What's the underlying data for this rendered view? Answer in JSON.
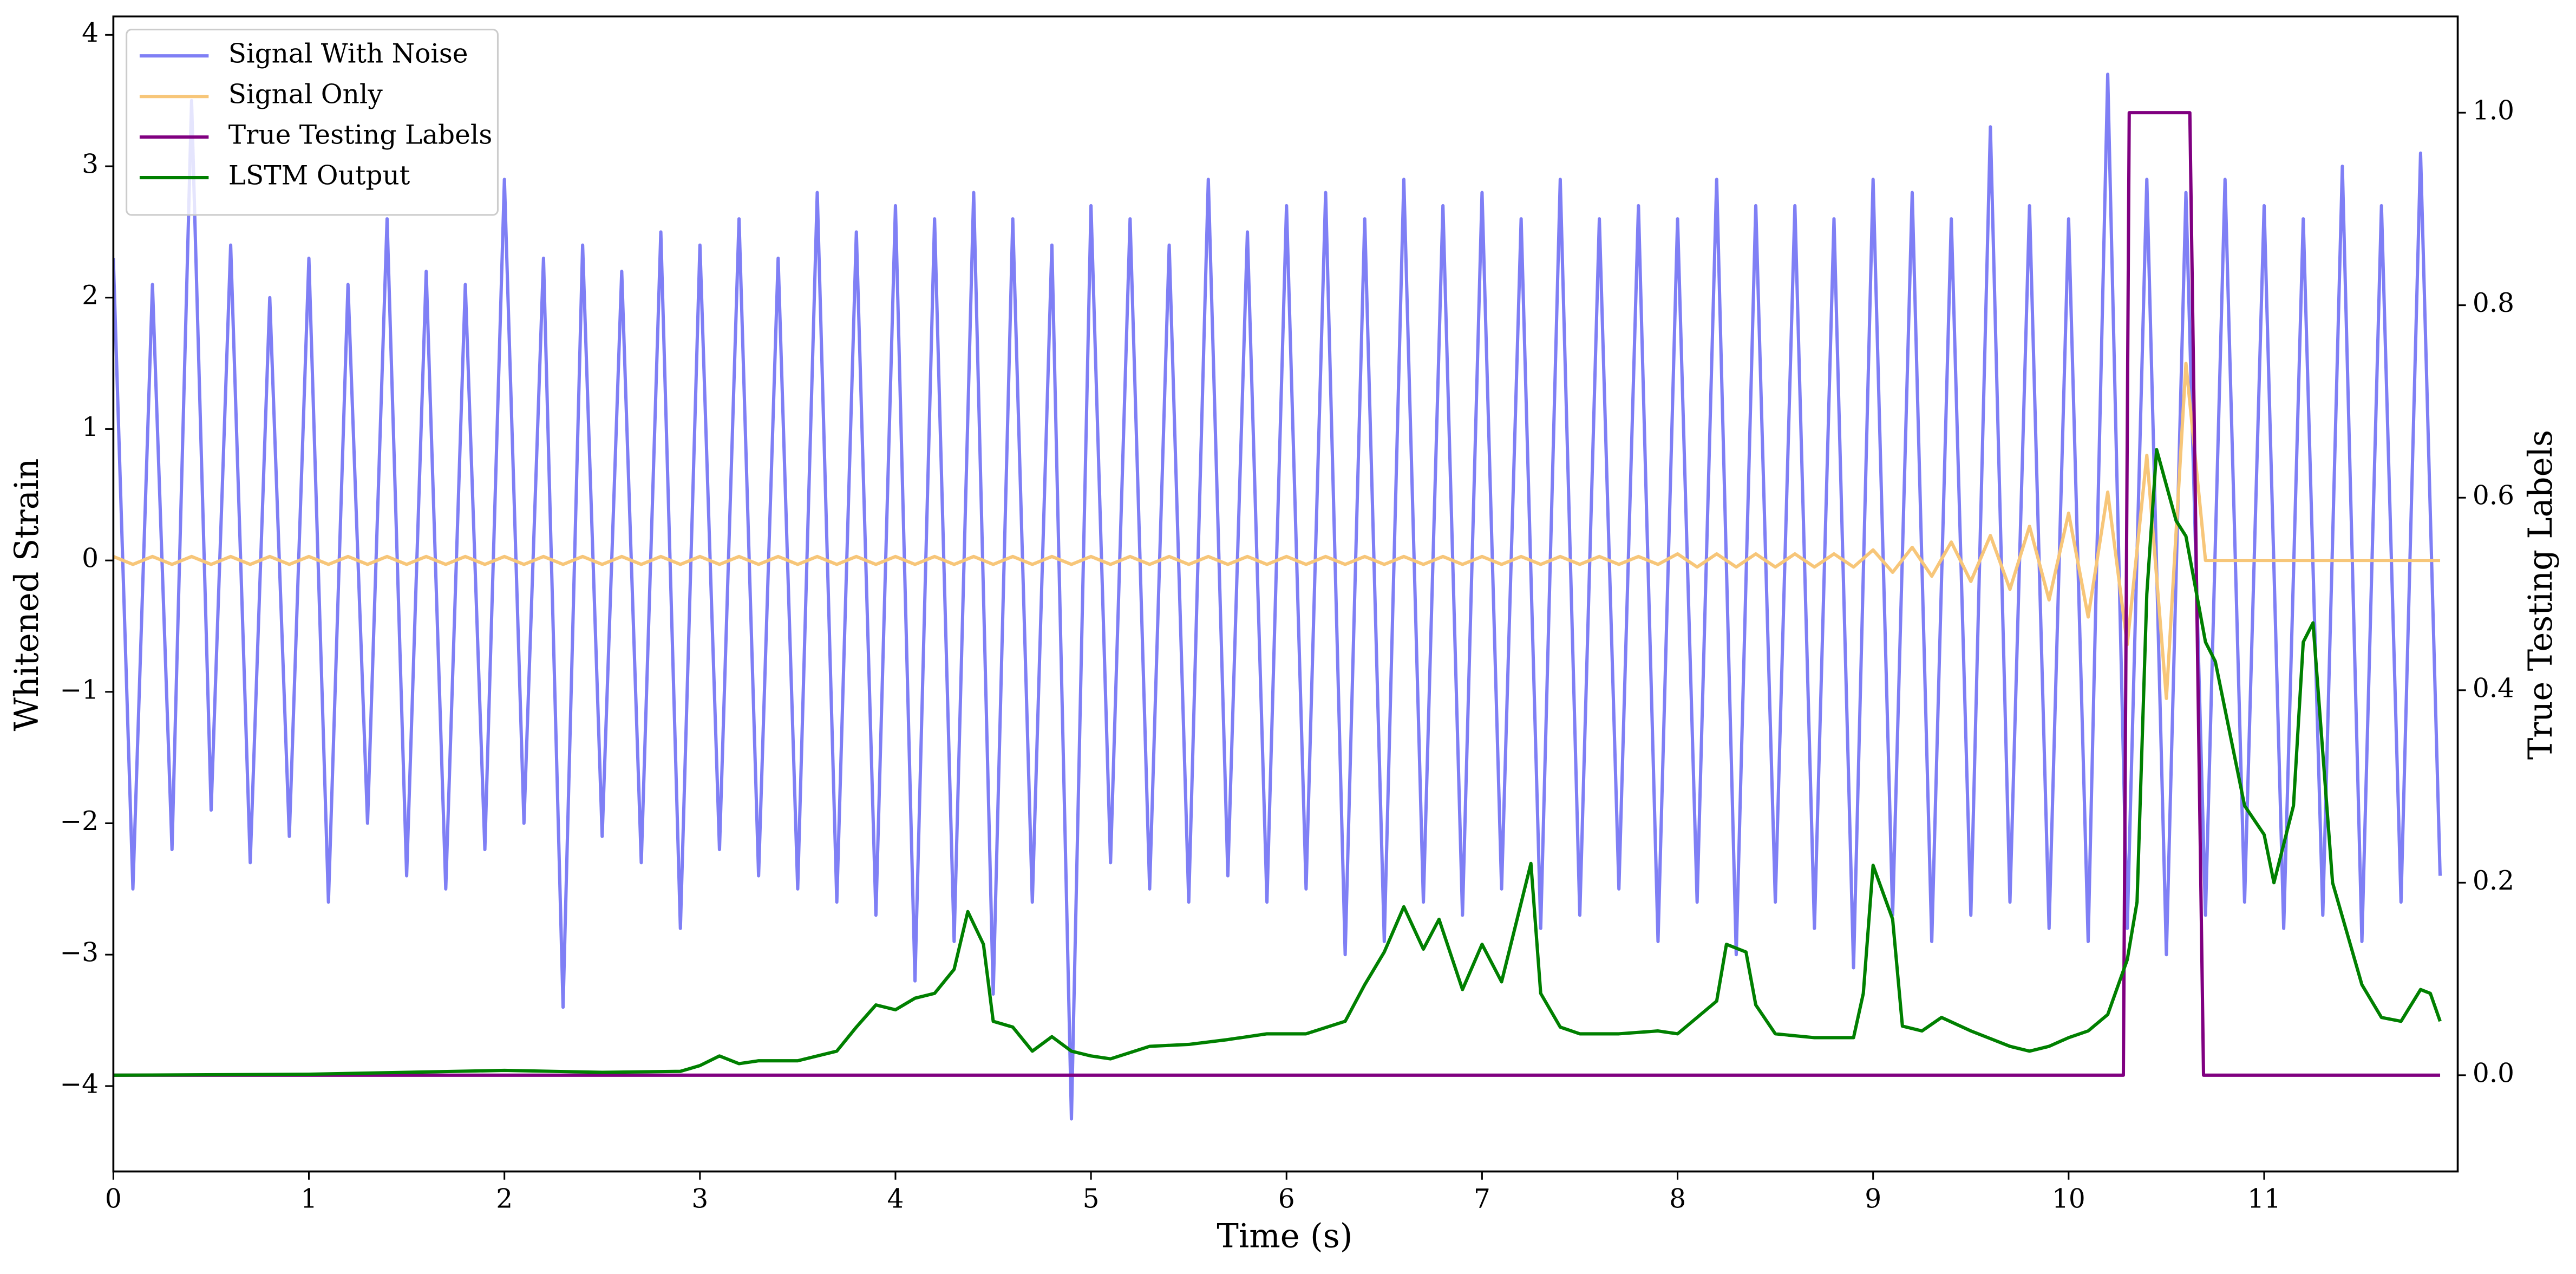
{
  "chart_data": {
    "type": "line",
    "xlabel": "Time (s)",
    "ylabel": "Whitened Strain",
    "y2label": "True Testing Labels",
    "xlim": [
      0,
      11.99
    ],
    "ylim": [
      -4.65,
      4.14
    ],
    "y2lim": [
      -0.1,
      1.1
    ],
    "xticks": [
      0,
      1,
      2,
      3,
      4,
      5,
      6,
      7,
      8,
      9,
      10,
      11
    ],
    "yticks": [
      {
        "value": -4,
        "label": "−4"
      },
      {
        "value": -3,
        "label": "−3"
      },
      {
        "value": -2,
        "label": "−2"
      },
      {
        "value": -1,
        "label": "−1"
      },
      0,
      1,
      2,
      3,
      4
    ],
    "y2ticks": [
      {
        "value": 0,
        "label": "0.0"
      },
      0.2,
      0.4,
      0.6,
      0.8,
      {
        "value": 1,
        "label": "1.0"
      }
    ],
    "legend": "upper left",
    "x": [
      0,
      0.1,
      0.2,
      0.3,
      0.4,
      0.5,
      0.6,
      0.7,
      0.8,
      0.9,
      1,
      1.1,
      1.2,
      1.3,
      1.4,
      1.5,
      1.6,
      1.7,
      1.8,
      1.9,
      2,
      2.1,
      2.2,
      2.3,
      2.4,
      2.5,
      2.6,
      2.7,
      2.8,
      2.9,
      3,
      3.1,
      3.2,
      3.3,
      3.4,
      3.5,
      3.6,
      3.7,
      3.8,
      3.9,
      4,
      4.1,
      4.2,
      4.3,
      4.4,
      4.5,
      4.6,
      4.7,
      4.8,
      4.9,
      5,
      5.1,
      5.2,
      5.3,
      5.4,
      5.5,
      5.6,
      5.7,
      5.8,
      5.9,
      6,
      6.1,
      6.2,
      6.3,
      6.4,
      6.5,
      6.6,
      6.7,
      6.8,
      6.9,
      7,
      7.1,
      7.2,
      7.3,
      7.4,
      7.5,
      7.6,
      7.7,
      7.8,
      7.9,
      8,
      8.1,
      8.2,
      8.3,
      8.4,
      8.5,
      8.6,
      8.7,
      8.8,
      8.9,
      9,
      9.1,
      9.2,
      9.3,
      9.4,
      9.5,
      9.6,
      9.7,
      9.8,
      9.9,
      10,
      10.1,
      10.2,
      10.3,
      10.4,
      10.5,
      10.6,
      10.7,
      10.8,
      10.9,
      11,
      11.1,
      11.2,
      11.3,
      11.4,
      11.5,
      11.6,
      11.7,
      11.8,
      11.9
    ],
    "series": [
      {
        "name": "Signal With Noise",
        "color": "#7f7ff5",
        "values": [
          2.3,
          -2.5,
          2.1,
          -2.2,
          3.5,
          -1.9,
          2.4,
          -2.3,
          2.0,
          -2.1,
          2.3,
          -2.6,
          2.1,
          -2.0,
          2.6,
          -2.4,
          2.2,
          -2.5,
          2.1,
          -2.2,
          2.9,
          -2.0,
          2.3,
          -3.4,
          2.4,
          -2.1,
          2.2,
          -2.3,
          2.5,
          -2.8,
          2.4,
          -2.2,
          2.6,
          -2.4,
          2.3,
          -2.5,
          2.8,
          -2.6,
          2.5,
          -2.7,
          2.7,
          -3.2,
          2.6,
          -2.9,
          2.8,
          -3.3,
          2.6,
          -2.6,
          2.4,
          -4.25,
          2.7,
          -2.3,
          2.6,
          -2.5,
          2.4,
          -2.6,
          2.9,
          -2.4,
          2.5,
          -2.6,
          2.7,
          -2.5,
          2.8,
          -3.0,
          2.6,
          -2.9,
          2.9,
          -2.6,
          2.7,
          -2.7,
          2.8,
          -2.5,
          2.6,
          -2.8,
          2.9,
          -2.7,
          2.6,
          -2.5,
          2.7,
          -2.9,
          2.6,
          -2.6,
          2.9,
          -3.0,
          2.7,
          -2.6,
          2.7,
          -2.8,
          2.6,
          -3.1,
          2.9,
          -2.7,
          2.8,
          -2.9,
          2.6,
          -2.7,
          3.3,
          -2.6,
          2.7,
          -2.8,
          2.6,
          -2.9,
          3.7,
          -2.8,
          2.9,
          -3.0,
          2.8,
          -2.7,
          2.9,
          -2.6,
          2.7,
          -2.8,
          2.6,
          -2.7,
          3.0,
          -2.9,
          2.7,
          -2.6,
          3.1,
          -2.4
        ]
      },
      {
        "name": "Signal Only",
        "color": "#f7c679",
        "values": [
          0.03,
          -0.03,
          0.03,
          -0.03,
          0.03,
          -0.03,
          0.03,
          -0.03,
          0.03,
          -0.03,
          0.03,
          -0.03,
          0.03,
          -0.03,
          0.03,
          -0.03,
          0.03,
          -0.03,
          0.03,
          -0.03,
          0.03,
          -0.03,
          0.03,
          -0.03,
          0.03,
          -0.03,
          0.03,
          -0.03,
          0.03,
          -0.03,
          0.03,
          -0.03,
          0.03,
          -0.03,
          0.03,
          -0.03,
          0.03,
          -0.03,
          0.03,
          -0.03,
          0.03,
          -0.03,
          0.03,
          -0.03,
          0.03,
          -0.03,
          0.03,
          -0.03,
          0.03,
          -0.03,
          0.03,
          -0.03,
          0.03,
          -0.03,
          0.03,
          -0.03,
          0.03,
          -0.03,
          0.03,
          -0.03,
          0.03,
          -0.03,
          0.03,
          -0.03,
          0.03,
          -0.03,
          0.03,
          -0.03,
          0.03,
          -0.03,
          0.03,
          -0.03,
          0.03,
          -0.03,
          0.03,
          -0.03,
          0.03,
          -0.03,
          0.03,
          -0.03,
          0.05,
          -0.05,
          0.05,
          -0.05,
          0.05,
          -0.05,
          0.05,
          -0.05,
          0.05,
          -0.05,
          0.08,
          -0.09,
          0.1,
          -0.12,
          0.14,
          -0.16,
          0.19,
          -0.22,
          0.26,
          -0.3,
          0.36,
          -0.43,
          0.52,
          -0.64,
          0.8,
          -1.05,
          1.5,
          0,
          0,
          0,
          0,
          0,
          0,
          0,
          0,
          0,
          0,
          0,
          0,
          0
        ]
      },
      {
        "name": "True Testing Labels",
        "color": "#800080",
        "axis": "y2",
        "x": [
          0,
          10.28,
          10.31,
          10.62,
          10.69,
          11.9
        ],
        "values": [
          0,
          0,
          1,
          1,
          0,
          0
        ]
      },
      {
        "name": "LSTM Output",
        "color": "#008000",
        "axis": "y2",
        "x": [
          0,
          1,
          2,
          2.5,
          2.9,
          3.0,
          3.1,
          3.2,
          3.3,
          3.5,
          3.7,
          3.8,
          3.9,
          4.0,
          4.1,
          4.2,
          4.3,
          4.37,
          4.45,
          4.5,
          4.6,
          4.7,
          4.8,
          4.9,
          5.0,
          5.1,
          5.3,
          5.5,
          5.7,
          5.9,
          6.1,
          6.3,
          6.4,
          6.5,
          6.6,
          6.7,
          6.78,
          6.9,
          7.0,
          7.1,
          7.25,
          7.3,
          7.4,
          7.5,
          7.7,
          7.9,
          8.0,
          8.1,
          8.2,
          8.25,
          8.35,
          8.4,
          8.5,
          8.7,
          8.9,
          8.95,
          9.0,
          9.1,
          9.15,
          9.25,
          9.35,
          9.5,
          9.7,
          9.8,
          9.9,
          10.0,
          10.1,
          10.2,
          10.3,
          10.35,
          10.4,
          10.45,
          10.55,
          10.6,
          10.7,
          10.75,
          10.9,
          11.0,
          11.05,
          11.15,
          11.2,
          11.25,
          11.35,
          11.5,
          11.6,
          11.7,
          11.8,
          11.85,
          11.9
        ],
        "values": [
          0,
          0.001,
          0.005,
          0.003,
          0.004,
          0.01,
          0.02,
          0.012,
          0.015,
          0.015,
          0.025,
          0.05,
          0.073,
          0.068,
          0.08,
          0.085,
          0.11,
          0.17,
          0.136,
          0.056,
          0.05,
          0.025,
          0.04,
          0.025,
          0.02,
          0.017,
          0.03,
          0.032,
          0.037,
          0.043,
          0.043,
          0.056,
          0.094,
          0.128,
          0.175,
          0.131,
          0.162,
          0.089,
          0.136,
          0.097,
          0.22,
          0.085,
          0.05,
          0.043,
          0.043,
          0.046,
          0.043,
          0.06,
          0.077,
          0.136,
          0.128,
          0.073,
          0.043,
          0.039,
          0.039,
          0.085,
          0.218,
          0.162,
          0.051,
          0.046,
          0.06,
          0.046,
          0.03,
          0.025,
          0.03,
          0.039,
          0.046,
          0.063,
          0.12,
          0.18,
          0.5,
          0.65,
          0.576,
          0.56,
          0.45,
          0.43,
          0.28,
          0.25,
          0.2,
          0.28,
          0.45,
          0.47,
          0.2,
          0.094,
          0.06,
          0.056,
          0.089,
          0.085,
          0.056
        ]
      }
    ]
  }
}
